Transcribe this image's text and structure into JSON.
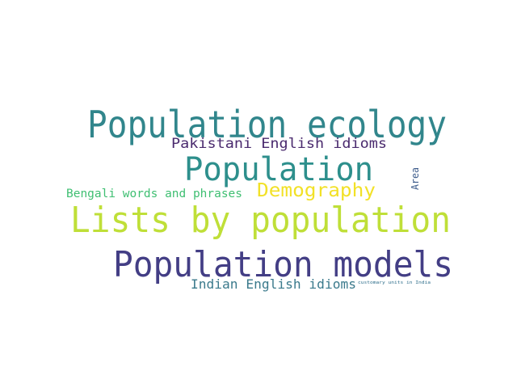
{
  "words": [
    {
      "text": "Population ecology",
      "color": "#31868c"
    },
    {
      "text": "Pakistani English idioms",
      "color": "#4a2a6e"
    },
    {
      "text": "Population",
      "color": "#2d8f8c"
    },
    {
      "text": "Area",
      "color": "#3b5a8a"
    },
    {
      "text": "Bengali words and phrases",
      "color": "#3fbf72"
    },
    {
      "text": "Demography",
      "color": "#f2e127"
    },
    {
      "text": "Lists by population",
      "color": "#bfdf38"
    },
    {
      "text": "Population models",
      "color": "#433e85"
    },
    {
      "text": "Indian English idioms",
      "color": "#3b7a8c"
    },
    {
      "text": "customary units in India",
      "color": "#2f6f8c"
    }
  ]
}
